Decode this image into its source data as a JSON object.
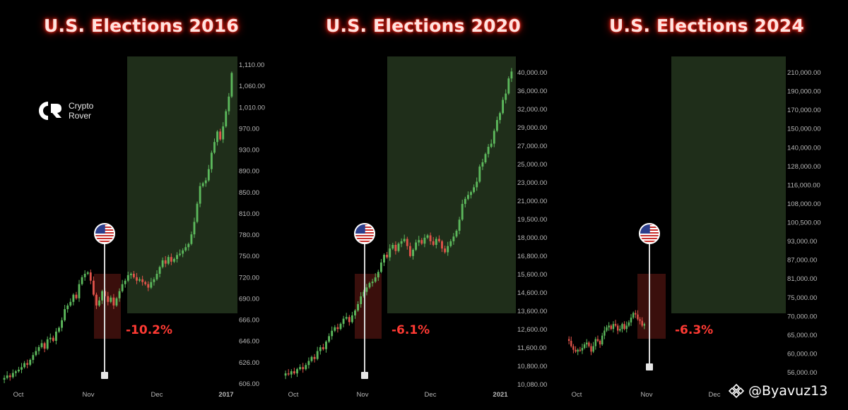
{
  "colors": {
    "up": "#5cb85c",
    "down": "#e0534a",
    "green_zone": "#1f2e1a",
    "red_zone": "#3a0f0c",
    "title_glow": "#ff2a1f"
  },
  "logo": {
    "line1": "Crypto",
    "line2": "Rover",
    "icon": "crypto-rover-logo-icon"
  },
  "watermark": {
    "text": "@Byavuz13",
    "icon": "binance-diamond-icon"
  },
  "flag_icon": "us-flag-icon",
  "chart_data": [
    {
      "type": "candlestick",
      "title": "U.S. Elections 2016",
      "y_ticks": [
        "1,110.00",
        "1,060.00",
        "1,010.00",
        "970.00",
        "930.00",
        "890.00",
        "850.00",
        "810.00",
        "780.00",
        "750.00",
        "720.00",
        "690.00",
        "666.00",
        "646.00",
        "626.00",
        "606.00"
      ],
      "x_ticks": [
        "Oct",
        "Nov",
        "Dec",
        "2017"
      ],
      "ylim": [
        600,
        1140
      ],
      "scale": "log",
      "election_drawdown": "-10.2%",
      "election_marker": "Nov 8",
      "price_path": [
        610,
        612,
        615,
        613,
        618,
        620,
        622,
        625,
        630,
        628,
        634,
        640,
        645,
        650,
        655,
        648,
        660,
        662,
        658,
        670,
        675,
        685,
        700,
        705,
        710,
        720,
        715,
        735,
        745,
        750,
        752,
        740,
        720,
        705,
        712,
        725,
        718,
        710,
        716,
        705,
        715,
        725,
        735,
        740,
        748,
        750,
        745,
        740,
        742,
        738,
        735,
        730,
        738,
        742,
        750,
        760,
        770,
        765,
        775,
        768,
        772,
        778,
        780,
        785,
        790,
        795,
        810,
        830,
        860,
        890,
        895,
        900,
        920,
        950,
        970,
        990,
        975,
        1000,
        1030,
        1060,
        1110
      ]
    },
    {
      "type": "candlestick",
      "title": "U.S. Elections 2020",
      "y_ticks": [
        "40,000.00",
        "36,000.00",
        "32,000.00",
        "29,000.00",
        "27,000.00",
        "25,000.00",
        "23,000.00",
        "21,000.00",
        "19,500.00",
        "18,000.00",
        "16,800.00",
        "15,600.00",
        "14,600.00",
        "13,600.00",
        "12,600.00",
        "11,600.00",
        "10,800.00",
        "10,080.00"
      ],
      "x_ticks": [
        "Oct",
        "Nov",
        "Dec",
        "2021"
      ],
      "ylim": [
        10000,
        41000
      ],
      "scale": "log",
      "election_drawdown": "-6.1%",
      "election_marker": "Nov 3",
      "price_path": [
        10600,
        10700,
        10650,
        10800,
        10700,
        10900,
        11000,
        10900,
        11100,
        11300,
        11500,
        11400,
        11800,
        12000,
        11900,
        12300,
        12600,
        12900,
        13100,
        13000,
        13300,
        13600,
        13700,
        13400,
        13800,
        14100,
        14500,
        15000,
        15300,
        15600,
        15900,
        16000,
        16300,
        16700,
        17400,
        18000,
        17800,
        18500,
        18800,
        18300,
        18900,
        19100,
        19300,
        18700,
        17900,
        18400,
        19000,
        19200,
        18900,
        19400,
        19600,
        19100,
        18800,
        19300,
        19100,
        18500,
        18200,
        18700,
        19100,
        19500,
        20000,
        21000,
        22500,
        23000,
        23400,
        23700,
        24200,
        24800,
        26500,
        27000,
        28000,
        28900,
        29300,
        31000,
        32500,
        33500,
        35500,
        36500,
        39000,
        40200
      ]
    },
    {
      "type": "candlestick",
      "title": "U.S. Elections 2024",
      "y_ticks": [
        "210,000.00",
        "190,000.00",
        "170,000.00",
        "150,000.00",
        "140,000.00",
        "128,000.00",
        "116,000.00",
        "108,000.00",
        "100,500.00",
        "93,000.00",
        "87,000.00",
        "81,000.00",
        "75,000.00",
        "70,000.00",
        "65,000.00",
        "60,000.00",
        "56,000.00"
      ],
      "x_ticks": [
        "Oct",
        "Nov",
        "Dec"
      ],
      "ylim": [
        54000,
        218000
      ],
      "scale": "log",
      "election_drawdown": "-6.3%",
      "election_marker": "Nov 5",
      "price_path": [
        64000,
        63500,
        62000,
        61000,
        60500,
        61000,
        60800,
        61500,
        62500,
        63000,
        62000,
        60500,
        62000,
        64000,
        63500,
        62500,
        65000,
        66500,
        67500,
        68000,
        67000,
        68500,
        68000,
        66500,
        67000,
        68500,
        67000,
        68000,
        69000,
        70500,
        72000,
        71500,
        70000,
        69500,
        68000,
        68500
      ]
    }
  ]
}
